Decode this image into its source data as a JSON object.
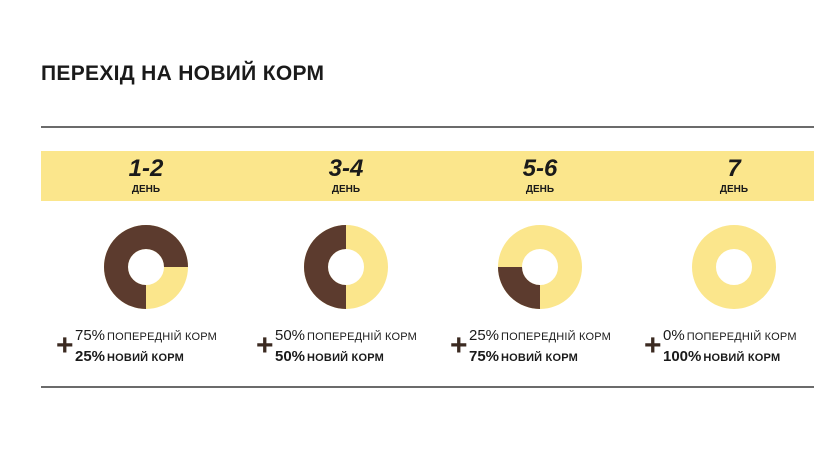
{
  "title": "ПЕРЕХІД НА НОВИЙ КОРМ",
  "colors": {
    "old_food": "#5c3b2e",
    "new_food": "#fbe68c",
    "band": "#fbe68c",
    "rule": "#6b6b6b"
  },
  "chart_data": {
    "type": "pie",
    "subtype": "donut",
    "categories": [
      "попередній корм",
      "новий корм"
    ],
    "panels": [
      {
        "period": "1-2",
        "unit": "ДЕНЬ",
        "values": [
          75,
          25
        ],
        "plus": "+",
        "old_pct": "75%",
        "old_label": "ПОПЕРЕДНІЙ КОРМ",
        "new_pct": "25%",
        "new_label": "НОВИЙ КОРМ"
      },
      {
        "period": "3-4",
        "unit": "ДЕНЬ",
        "values": [
          50,
          50
        ],
        "plus": "+",
        "old_pct": "50%",
        "old_label": "ПОПЕРЕДНІЙ КОРМ",
        "new_pct": "50%",
        "new_label": "НОВИЙ КОРМ"
      },
      {
        "period": "5-6",
        "unit": "ДЕНЬ",
        "values": [
          25,
          75
        ],
        "plus": "+",
        "old_pct": "25%",
        "old_label": "ПОПЕРЕДНІЙ КОРМ",
        "new_pct": "75%",
        "new_label": "НОВИЙ КОРМ"
      },
      {
        "period": "7",
        "unit": "ДЕНЬ",
        "values": [
          0,
          100
        ],
        "plus": "+",
        "old_pct": "0%",
        "old_label": "ПОПЕРЕДНІЙ КОРМ",
        "new_pct": "100%",
        "new_label": "НОВИЙ КОРМ"
      }
    ]
  }
}
